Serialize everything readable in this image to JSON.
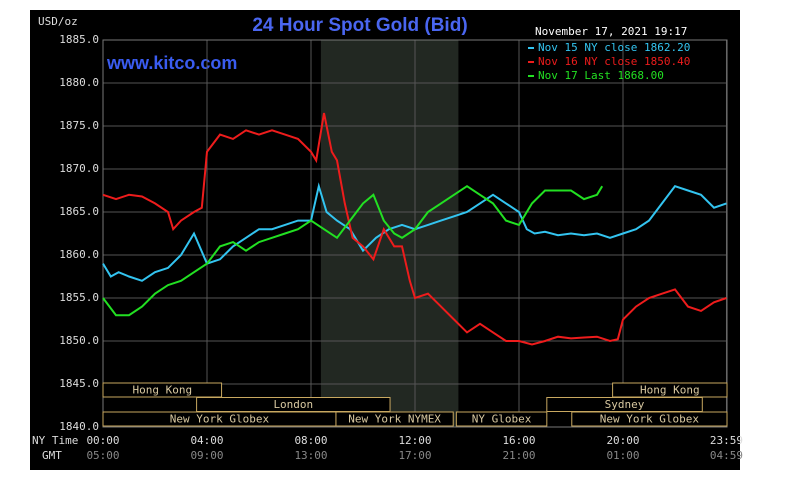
{
  "chart_data": {
    "type": "line",
    "title": "24 Hour Spot Gold (Bid)",
    "y_unit": "USD/oz",
    "watermark": "www.kitco.com",
    "timestamp": "November 17, 2021 19:17",
    "x_row_labels": [
      "NY Time",
      "GMT"
    ],
    "xlim": [
      0,
      24
    ],
    "ylim": [
      1840,
      1885
    ],
    "yticks": [
      {
        "value": 1840,
        "label": "1840.0"
      },
      {
        "value": 1845,
        "label": "1845.0"
      },
      {
        "value": 1850,
        "label": "1850.0"
      },
      {
        "value": 1855,
        "label": "1855.0"
      },
      {
        "value": 1860,
        "label": "1860.0"
      },
      {
        "value": 1865,
        "label": "1865.0"
      },
      {
        "value": 1870,
        "label": "1870.0"
      },
      {
        "value": 1875,
        "label": "1875.0"
      },
      {
        "value": 1880,
        "label": "1880.0"
      },
      {
        "value": 1885,
        "label": "1885.0"
      }
    ],
    "xticks": [
      {
        "value": 0,
        "label": "00:00"
      },
      {
        "value": 4,
        "label": "04:00"
      },
      {
        "value": 8,
        "label": "08:00"
      },
      {
        "value": 12,
        "label": "12:00"
      },
      {
        "value": 16,
        "label": "16:00"
      },
      {
        "value": 20,
        "label": "20:00"
      },
      {
        "value": 23.98,
        "label": "23:59"
      }
    ],
    "xticks_gmt": [
      "05:00",
      "09:00",
      "13:00",
      "17:00",
      "21:00",
      "01:00",
      "04:59"
    ],
    "grid": true,
    "shaded_region": [
      8.38,
      13.67
    ],
    "sessions": [
      {
        "label": "Hong Kong",
        "start": 0,
        "end": 4.56,
        "row": 0
      },
      {
        "label": "Hong Kong",
        "start": 19.6,
        "end": 24,
        "row": 0
      },
      {
        "label": "London",
        "start": 3.6,
        "end": 11.04,
        "row": 1
      },
      {
        "label": "Sydney",
        "start": 17.07,
        "end": 23.05,
        "row": 1
      },
      {
        "label": "New York Globex",
        "start": 0,
        "end": 8.96,
        "row": 2
      },
      {
        "label": "New York NYMEX",
        "start": 8.96,
        "end": 13.47,
        "row": 2
      },
      {
        "label": "NY Globex",
        "start": 13.59,
        "end": 17.07,
        "row": 2
      },
      {
        "label": "New York Globex",
        "start": 18.03,
        "end": 24,
        "row": 2
      }
    ],
    "series": [
      {
        "name": "Nov 15 NY close 1862.20",
        "color": "#33c4f0",
        "x": [
          0,
          0.3,
          0.6,
          1,
          1.5,
          2,
          2.5,
          3,
          3.5,
          4,
          4.5,
          5,
          5.5,
          6,
          6.5,
          7,
          7.5,
          8,
          8.3,
          8.6,
          9,
          9.5,
          10,
          10.5,
          11,
          11.5,
          12,
          12.5,
          13,
          13.5,
          14,
          14.5,
          15,
          15.5,
          16,
          16.3,
          16.6,
          17,
          17.5,
          18,
          18.5,
          19,
          19.5,
          20,
          20.5,
          21,
          21.5,
          22,
          22.5,
          23,
          23.5,
          23.98
        ],
        "values": [
          1859,
          1857.5,
          1858,
          1857.5,
          1857,
          1858,
          1858.5,
          1860,
          1862.5,
          1859,
          1859.5,
          1861,
          1862,
          1863,
          1863,
          1863.5,
          1864,
          1864,
          1868,
          1865,
          1864,
          1863,
          1860.5,
          1862,
          1863,
          1863.5,
          1863,
          1863.5,
          1864,
          1864.5,
          1865,
          1866,
          1867,
          1866,
          1865,
          1863,
          1862.5,
          1862.7,
          1862.3,
          1862.5,
          1862.3,
          1862.5,
          1862,
          1862.5,
          1863,
          1864,
          1866,
          1868,
          1867.5,
          1867,
          1865.5,
          1866
        ]
      },
      {
        "name": "Nov 16 NY close 1850.40",
        "color": "#ee1c1c",
        "x": [
          0,
          0.5,
          1,
          1.5,
          2,
          2.5,
          2.7,
          3,
          3.5,
          3.8,
          4,
          4.5,
          5,
          5.5,
          6,
          6.5,
          7,
          7.5,
          8,
          8.2,
          8.5,
          8.8,
          9,
          9.3,
          9.6,
          10,
          10.4,
          10.8,
          11.2,
          11.5,
          11.8,
          12,
          12.5,
          13,
          13.5,
          14,
          14.5,
          15,
          15.5,
          16,
          16.5,
          17,
          17.5,
          18,
          18.5,
          19,
          19.5,
          19.8,
          20,
          20.5,
          21,
          21.5,
          22,
          22.5,
          23,
          23.5,
          23.98
        ],
        "values": [
          1867,
          1866.5,
          1867,
          1866.8,
          1866,
          1865,
          1863,
          1864,
          1865,
          1865.5,
          1872,
          1874,
          1873.5,
          1874.5,
          1874,
          1874.5,
          1874,
          1873.5,
          1872,
          1871,
          1876.5,
          1872,
          1871,
          1866,
          1862,
          1861,
          1859.5,
          1863,
          1861,
          1861,
          1857,
          1855,
          1855.5,
          1854,
          1852.5,
          1851,
          1852,
          1851,
          1850,
          1850,
          1849.6,
          1850,
          1850.5,
          1850.3,
          1850.4,
          1850.5,
          1850,
          1850.2,
          1852.5,
          1854,
          1855,
          1855.5,
          1856,
          1854,
          1853.5,
          1854.5,
          1855
        ]
      },
      {
        "name": "Nov 17 Last 1868.00",
        "color": "#22e022",
        "x": [
          0,
          0.5,
          1,
          1.5,
          2,
          2.5,
          3,
          3.5,
          4,
          4.5,
          5,
          5.5,
          6,
          6.5,
          7,
          7.5,
          8,
          8.5,
          9,
          9.5,
          10,
          10.4,
          10.8,
          11.2,
          11.5,
          12,
          12.5,
          13,
          13.5,
          14,
          14.5,
          15,
          15.5,
          16,
          16.5,
          17,
          17.5,
          18,
          18.5,
          19,
          19.2
        ],
        "values": [
          1855,
          1853,
          1853,
          1854,
          1855.5,
          1856.5,
          1857,
          1858,
          1859,
          1861,
          1861.5,
          1860.5,
          1861.5,
          1862,
          1862.5,
          1863,
          1864,
          1863,
          1862,
          1864,
          1866,
          1867,
          1864,
          1862.5,
          1862,
          1863,
          1865,
          1866,
          1867,
          1868,
          1867,
          1866,
          1864,
          1863.5,
          1866,
          1867.5,
          1867.5,
          1867.5,
          1866.5,
          1867,
          1868
        ]
      }
    ]
  }
}
